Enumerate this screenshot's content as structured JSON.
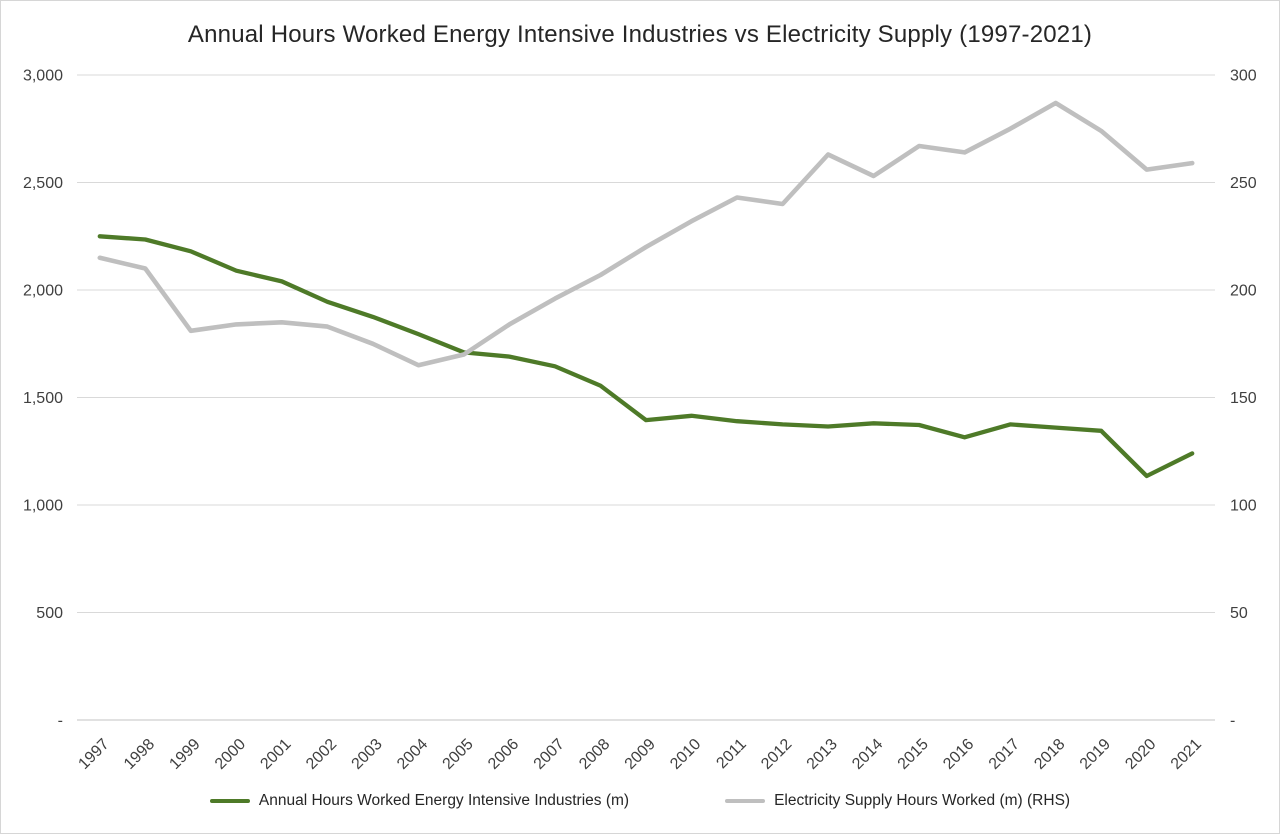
{
  "chart_data": {
    "type": "line",
    "title": "Annual Hours Worked Energy Intensive Industries vs Electricity Supply (1997-2021)",
    "x": [
      "1997",
      "1998",
      "1999",
      "2000",
      "2001",
      "2002",
      "2003",
      "2004",
      "2005",
      "2006",
      "2007",
      "2008",
      "2009",
      "2010",
      "2011",
      "2012",
      "2013",
      "2014",
      "2015",
      "2016",
      "2017",
      "2018",
      "2019",
      "2020",
      "2021"
    ],
    "series": [
      {
        "name": "Annual Hours Worked Energy Intensive Industries (m)",
        "axis": "left",
        "color": "#4e7a28",
        "values": [
          2250,
          2235,
          2180,
          2090,
          2040,
          1945,
          1875,
          1795,
          1710,
          1690,
          1645,
          1555,
          1395,
          1415,
          1390,
          1375,
          1365,
          1380,
          1372,
          1315,
          1375,
          1360,
          1345,
          1135,
          1240
        ]
      },
      {
        "name": "Electricity Supply Hours Worked (m) (RHS)",
        "axis": "right",
        "color": "#bfbfbf",
        "values": [
          215,
          210,
          181,
          184,
          185,
          183,
          175,
          165,
          170,
          184,
          196,
          207,
          220,
          232,
          243,
          240,
          263,
          253,
          267,
          264,
          275,
          287,
          274,
          256,
          259
        ]
      }
    ],
    "left_axis": {
      "min": 0,
      "max": 3000,
      "ticks": [
        "-",
        "500",
        "1,000",
        "1,500",
        "2,000",
        "2,500",
        "3,000"
      ]
    },
    "right_axis": {
      "min": 0,
      "max": 300,
      "ticks": [
        "-",
        "50",
        "100",
        "150",
        "200",
        "250",
        "300"
      ]
    },
    "grid": true,
    "legend_position": "bottom",
    "colors": {
      "gridline": "#d9d9d9",
      "axis_line": "#c3c3c3",
      "tick_text": "#404040",
      "title_text": "#262626",
      "background": "#ffffff"
    }
  }
}
